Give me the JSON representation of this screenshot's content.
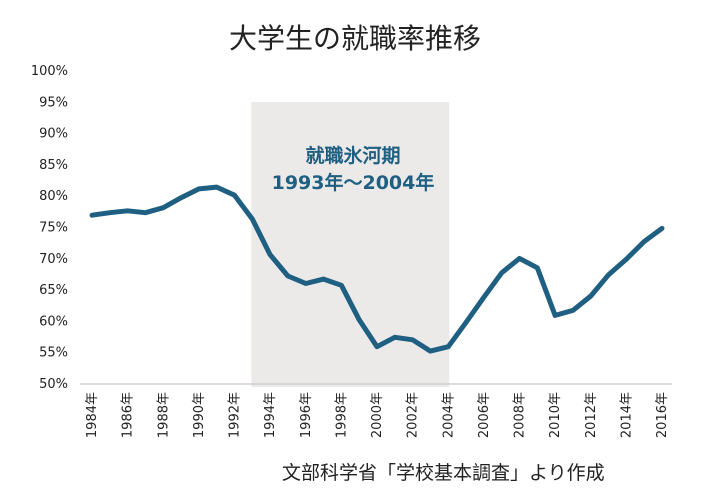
{
  "chart_data": {
    "type": "line",
    "title": "大学生の就職率推移",
    "source": "文部科学省「学校基本調査」より作成",
    "annotation": {
      "line1": "就職氷河期",
      "line2": "1993年〜2004年",
      "shaded_range": [
        1993,
        2004
      ]
    },
    "x": [
      1984,
      1985,
      1986,
      1987,
      1988,
      1989,
      1990,
      1991,
      1992,
      1993,
      1994,
      1995,
      1996,
      1997,
      1998,
      1999,
      2000,
      2001,
      2002,
      2003,
      2004,
      2005,
      2006,
      2007,
      2008,
      2009,
      2010,
      2011,
      2012,
      2013,
      2014,
      2015,
      2016
    ],
    "values": [
      76.8,
      77.2,
      77.5,
      77.2,
      78.0,
      79.6,
      81.0,
      81.3,
      80.0,
      76.2,
      70.5,
      67.1,
      65.9,
      66.6,
      65.6,
      60.1,
      55.8,
      57.3,
      56.9,
      55.1,
      55.8,
      59.7,
      63.7,
      67.6,
      69.9,
      68.4,
      60.8,
      61.6,
      63.9,
      67.3,
      69.8,
      72.6,
      74.7
    ],
    "xticks": [
      "1984年",
      "1986年",
      "1988年",
      "1990年",
      "1992年",
      "1994年",
      "1996年",
      "1998年",
      "2000年",
      "2002年",
      "2004年",
      "2006年",
      "2008年",
      "2010年",
      "2012年",
      "2014年",
      "2016年"
    ],
    "yticks": [
      "50%",
      "55%",
      "60%",
      "65%",
      "70%",
      "75%",
      "80%",
      "85%",
      "90%",
      "95%",
      "100%"
    ],
    "ylim": [
      50,
      100
    ],
    "xlim": [
      1984,
      2016
    ],
    "grid": false,
    "colors": {
      "line": "#1e5f82",
      "shade": "#ece9e9",
      "annotation": "#1e5f82"
    }
  }
}
